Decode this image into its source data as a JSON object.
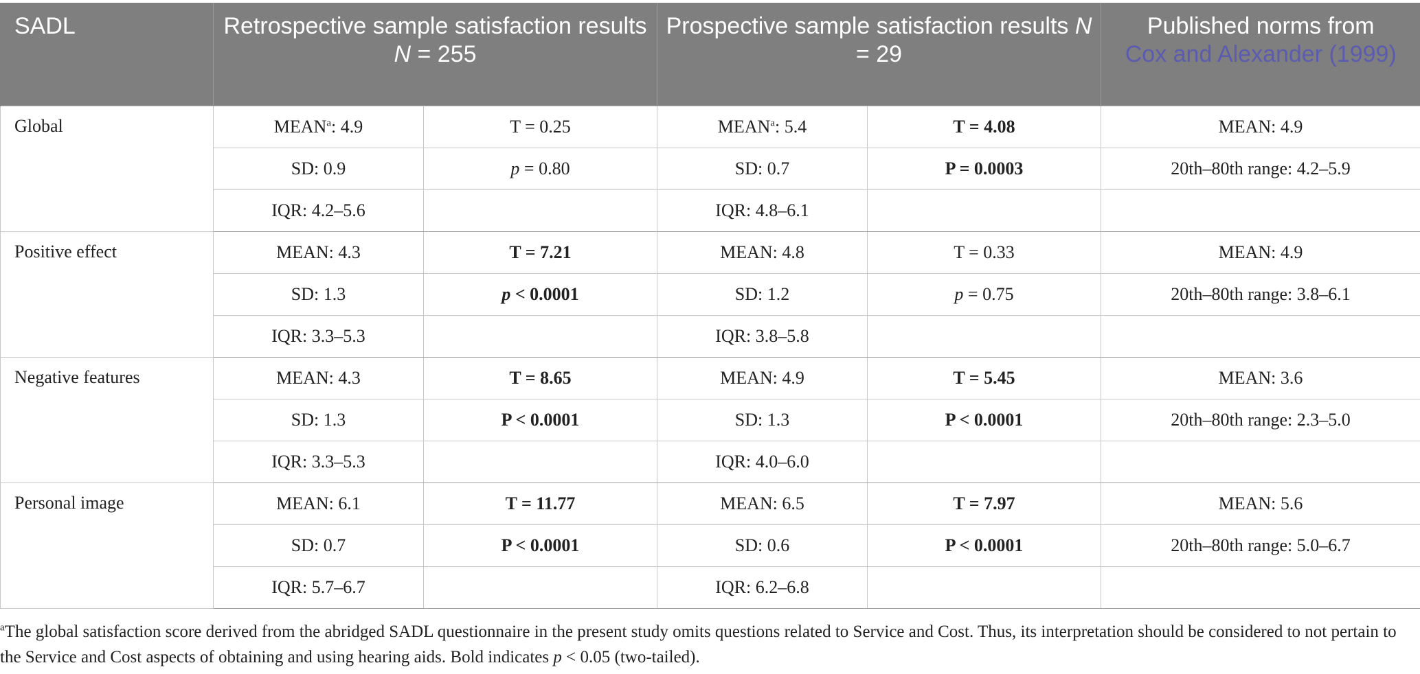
{
  "header": {
    "col1": "SADL",
    "col2": "Retrospective sample satisfaction results N = 255",
    "col3": "Prospective sample satisfaction results N = 29",
    "col4_prefix": "Published norms from",
    "col4_citation": "Cox and Alexander (1999)"
  },
  "rows": [
    {
      "label": "Global",
      "r0": {
        "a": "MEANa: 4.9",
        "b": "T = 0.25",
        "c": "MEANa: 5.4",
        "d": "T = 4.08",
        "e": "MEAN: 4.9"
      },
      "r1": {
        "a": "SD: 0.9",
        "b": "p = 0.80",
        "c": "SD: 0.7",
        "d": "P = 0.0003",
        "e": "20th–80th range: 4.2–5.9"
      },
      "r2": {
        "a": "IQR: 4.2–5.6",
        "b": "",
        "c": "IQR: 4.8–6.1",
        "d": "",
        "e": ""
      }
    },
    {
      "label": "Positive effect",
      "r0": {
        "a": "MEAN: 4.3",
        "b": "T = 7.21",
        "c": "MEAN: 4.8",
        "d": "T = 0.33",
        "e": "MEAN: 4.9"
      },
      "r1": {
        "a": "SD: 1.3",
        "b": "p < 0.0001",
        "c": "SD: 1.2",
        "d": "p = 0.75",
        "e": "20th–80th range: 3.8–6.1"
      },
      "r2": {
        "a": "IQR: 3.3–5.3",
        "b": "",
        "c": "IQR: 3.8–5.8",
        "d": "",
        "e": ""
      }
    },
    {
      "label": "Negative features",
      "r0": {
        "a": "MEAN: 4.3",
        "b": "T = 8.65",
        "c": "MEAN: 4.9",
        "d": "T = 5.45",
        "e": "MEAN: 3.6"
      },
      "r1": {
        "a": "SD: 1.3",
        "b": "P < 0.0001",
        "c": "SD: 1.3",
        "d": "P < 0.0001",
        "e": "20th–80th range: 2.3–5.0"
      },
      "r2": {
        "a": "IQR: 3.3–5.3",
        "b": "",
        "c": "IQR: 4.0–6.0",
        "d": "",
        "e": ""
      }
    },
    {
      "label": "Personal image",
      "r0": {
        "a": "MEAN: 6.1",
        "b": "T = 11.77",
        "c": "MEAN: 6.5",
        "d": "T = 7.97",
        "e": "MEAN: 5.6"
      },
      "r1": {
        "a": "SD: 0.7",
        "b": "P < 0.0001",
        "c": "SD: 0.6",
        "d": "P < 0.0001",
        "e": "20th–80th range: 5.0–6.7"
      },
      "r2": {
        "a": "IQR: 5.7–6.7",
        "b": "",
        "c": "IQR: 6.2–6.8",
        "d": "",
        "e": ""
      }
    }
  ],
  "footnote": "aThe global satisfaction score derived from the abridged SADL questionnaire in the present study omits questions related to Service and Cost. Thus, its interpretation should be considered to not pertain to the Service and Cost aspects of obtaining and using hearing aids. Bold indicates p < 0.05 (two-tailed)."
}
